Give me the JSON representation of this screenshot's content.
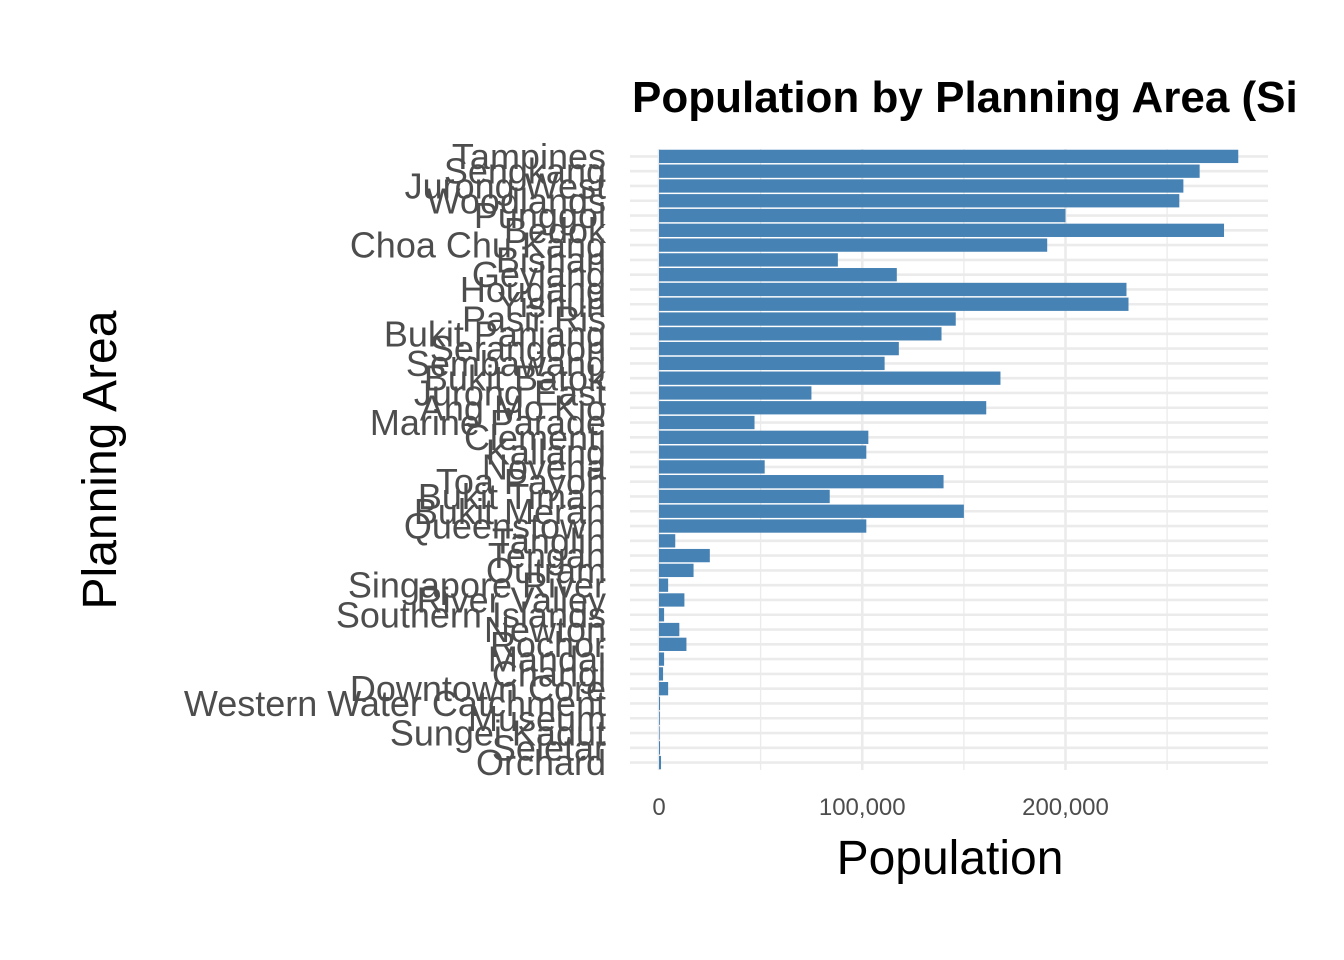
{
  "chart_data": {
    "type": "bar",
    "orientation": "horizontal",
    "title": "Population by Planning Area (Si",
    "xlabel": "Population",
    "ylabel": "Planning Area",
    "x_ticks": [
      0,
      100000,
      200000
    ],
    "x_tick_labels": [
      "0",
      "100,000",
      "200,000"
    ],
    "xlim": [
      0,
      300000
    ],
    "grid": true,
    "legend": "none",
    "bar_color": "#4682b4",
    "grid_color": "#ebebeb",
    "categories": [
      "Tampines",
      "Sengkang",
      "Jurong West",
      "Woodlands",
      "Punggol",
      "Bedok",
      "Choa Chu Kang",
      "Bishan",
      "Geylang",
      "Hougang",
      "Yishun",
      "Pasir Ris",
      "Bukit Panjang",
      "Serangoon",
      "Sembawang",
      "Bukit Batok",
      "Jurong East",
      "Ang Mo Kio",
      "Marine Parade",
      "Clementi",
      "Kallang",
      "Novena",
      "Toa Payoh",
      "Bukit Timah",
      "Bukit Merah",
      "Queenstown",
      "Tanglin",
      "Tengah",
      "Outram",
      "Singapore River",
      "River Valley",
      "Southern Islands",
      "Newton",
      "Rochor",
      "Mandai",
      "Changi",
      "Downtown Core",
      "Western Water Catchment",
      "Museum",
      "Sungei Kadut",
      "Seletar",
      "Orchard"
    ],
    "values": [
      285000,
      266000,
      258000,
      256000,
      200000,
      278000,
      191000,
      88000,
      117000,
      230000,
      231000,
      146000,
      139000,
      118000,
      111000,
      168000,
      75000,
      161000,
      47000,
      103000,
      102000,
      52000,
      140000,
      84000,
      150000,
      102000,
      8000,
      25000,
      17000,
      4500,
      12500,
      2500,
      10000,
      13500,
      2500,
      2000,
      4500,
      500,
      400,
      300,
      500,
      1000
    ]
  }
}
